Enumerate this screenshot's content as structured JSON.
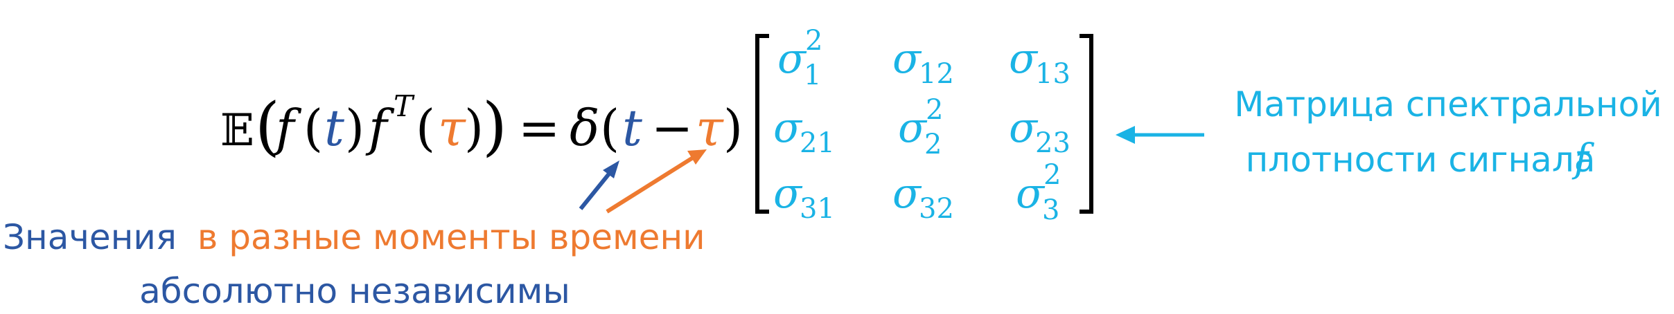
{
  "colors": {
    "black": "#000000",
    "blue": "#2c57a3",
    "orange": "#ee7a30",
    "cyan": "#1ab3e5"
  },
  "equation": {
    "expectation_symbol": "𝔼",
    "open_big_paren": "(",
    "f1": "f",
    "lp1": "(",
    "t1": "t",
    "rp1": ")",
    "f2": "f",
    "transpose": "T",
    "lp2": "(",
    "tau1": "τ",
    "rp2": ")",
    "close_big_paren": ")",
    "equals": "=",
    "delta": "δ",
    "lp3": "(",
    "t2": "t",
    "minus": "−",
    "tau2": "τ",
    "rp3": ")"
  },
  "matrix": {
    "sigma": "σ",
    "cells": [
      [
        "1",
        "2"
      ],
      [
        "12",
        ""
      ],
      [
        "13",
        ""
      ],
      [
        "21",
        ""
      ],
      [
        "2",
        "2"
      ],
      [
        "23",
        ""
      ],
      [
        "31",
        ""
      ],
      [
        "32",
        ""
      ],
      [
        "3",
        "2"
      ]
    ]
  },
  "annotation_right": {
    "line1": "Матрица спектральной",
    "line2": "плотности сигнала",
    "symbol": "f"
  },
  "annotation_bottom": {
    "part1": "Значения",
    "part2": "в разные моменты времени",
    "line2": "абсолютно независимы"
  }
}
